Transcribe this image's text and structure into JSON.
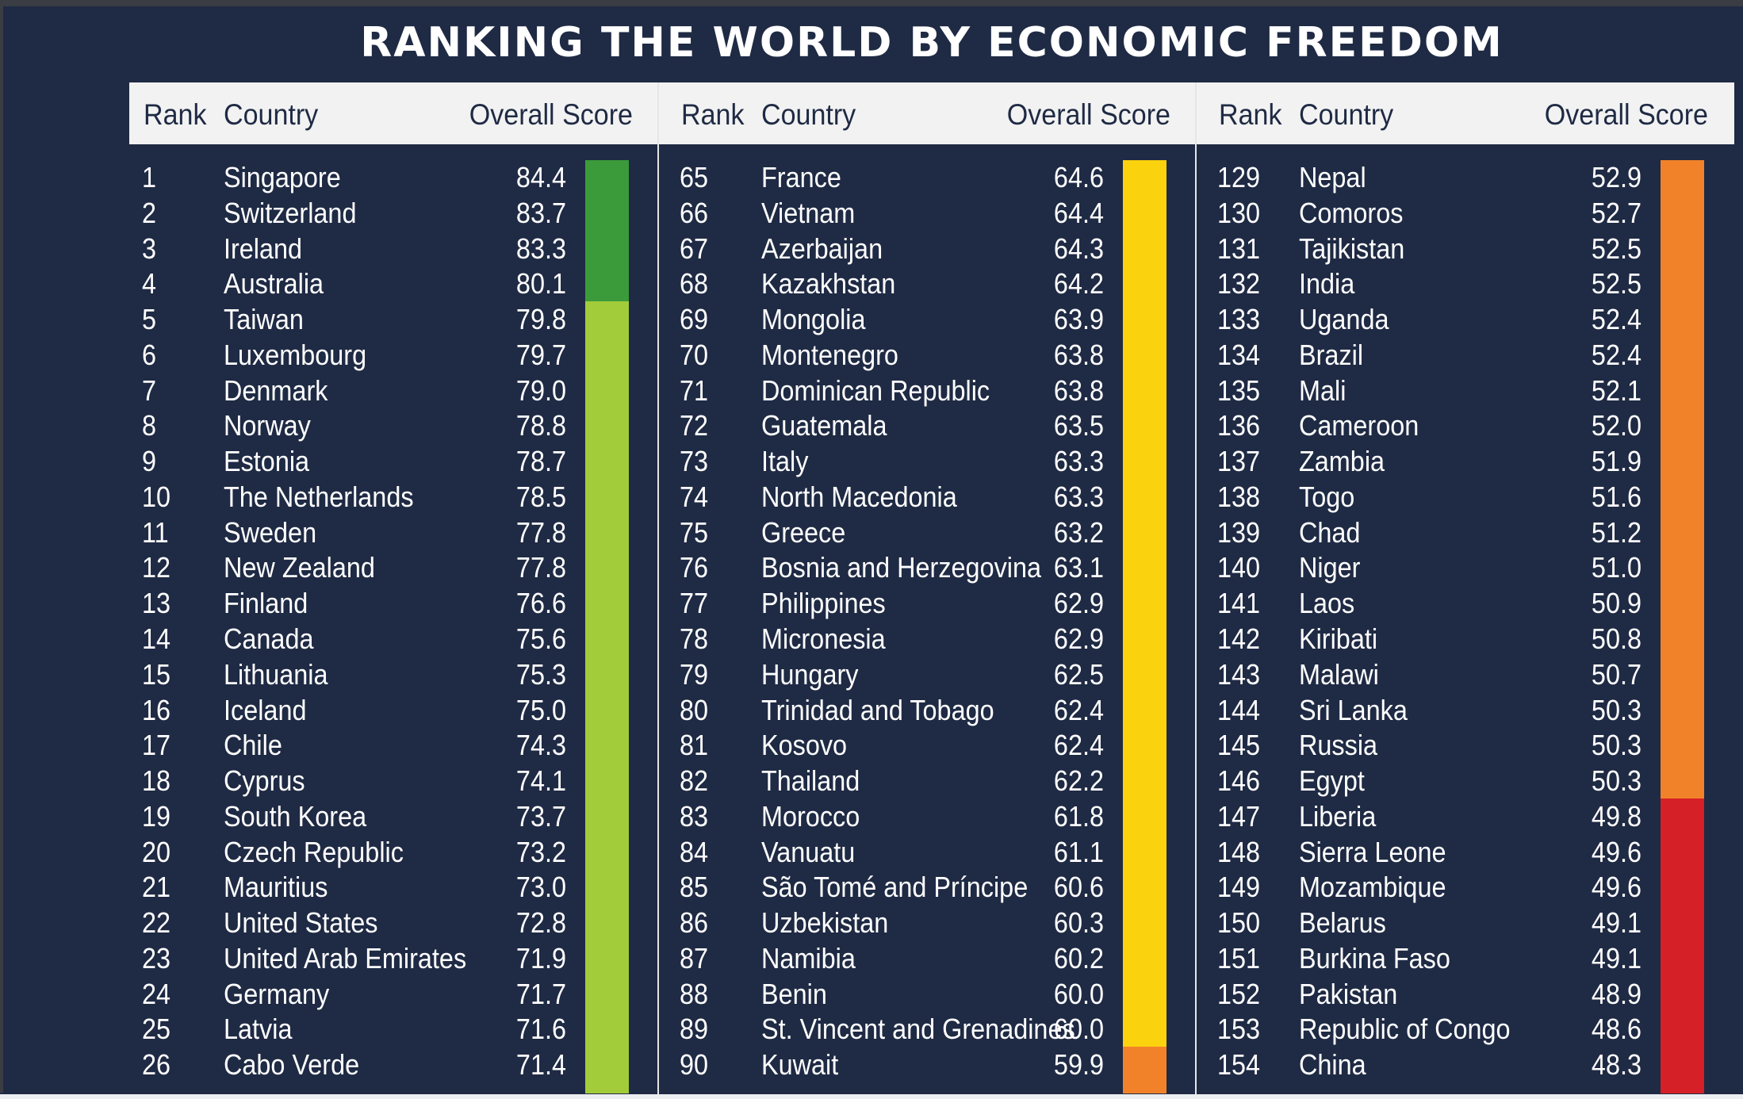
{
  "title": "RANKING THE WORLD BY ECONOMIC FREEDOM",
  "headers": {
    "rank": "Rank",
    "country": "Country",
    "score": "Overall Score"
  },
  "colors": {
    "background": "#1f2a44",
    "free": "#3b9b3b",
    "mostly_free": "#a3cc3a",
    "moderately_free": "#fbd20e",
    "mostly_unfree": "#f2822a",
    "repressed": "#d62027"
  },
  "columns": [
    {
      "rows": [
        {
          "rank": "1",
          "country": "Singapore",
          "score": "84.4",
          "band": "free"
        },
        {
          "rank": "2",
          "country": "Switzerland",
          "score": "83.7",
          "band": "free"
        },
        {
          "rank": "3",
          "country": "Ireland",
          "score": "83.3",
          "band": "free"
        },
        {
          "rank": "4",
          "country": "Australia",
          "score": "80.1",
          "band": "free"
        },
        {
          "rank": "5",
          "country": "Taiwan",
          "score": "79.8",
          "band": "mostly_free"
        },
        {
          "rank": "6",
          "country": "Luxembourg",
          "score": "79.7",
          "band": "mostly_free"
        },
        {
          "rank": "7",
          "country": "Denmark",
          "score": "79.0",
          "band": "mostly_free"
        },
        {
          "rank": "8",
          "country": "Norway",
          "score": "78.8",
          "band": "mostly_free"
        },
        {
          "rank": "9",
          "country": "Estonia",
          "score": "78.7",
          "band": "mostly_free"
        },
        {
          "rank": "10",
          "country": "The Netherlands",
          "score": "78.5",
          "band": "mostly_free"
        },
        {
          "rank": "11",
          "country": "Sweden",
          "score": "77.8",
          "band": "mostly_free"
        },
        {
          "rank": "12",
          "country": "New Zealand",
          "score": "77.8",
          "band": "mostly_free"
        },
        {
          "rank": "13",
          "country": "Finland",
          "score": "76.6",
          "band": "mostly_free"
        },
        {
          "rank": "14",
          "country": "Canada",
          "score": "75.6",
          "band": "mostly_free"
        },
        {
          "rank": "15",
          "country": "Lithuania",
          "score": "75.3",
          "band": "mostly_free"
        },
        {
          "rank": "16",
          "country": "Iceland",
          "score": "75.0",
          "band": "mostly_free"
        },
        {
          "rank": "17",
          "country": "Chile",
          "score": "74.3",
          "band": "mostly_free"
        },
        {
          "rank": "18",
          "country": "Cyprus",
          "score": "74.1",
          "band": "mostly_free"
        },
        {
          "rank": "19",
          "country": "South Korea",
          "score": "73.7",
          "band": "mostly_free"
        },
        {
          "rank": "20",
          "country": "Czech Republic",
          "score": "73.2",
          "band": "mostly_free"
        },
        {
          "rank": "21",
          "country": "Mauritius",
          "score": "73.0",
          "band": "mostly_free"
        },
        {
          "rank": "22",
          "country": "United States",
          "score": "72.8",
          "band": "mostly_free"
        },
        {
          "rank": "23",
          "country": "United Arab Emirates",
          "score": "71.9",
          "band": "mostly_free"
        },
        {
          "rank": "24",
          "country": "Germany",
          "score": "71.7",
          "band": "mostly_free"
        },
        {
          "rank": "25",
          "country": "Latvia",
          "score": "71.6",
          "band": "mostly_free"
        },
        {
          "rank": "26",
          "country": "Cabo Verde",
          "score": "71.4",
          "band": "mostly_free"
        }
      ]
    },
    {
      "rows": [
        {
          "rank": "65",
          "country": "France",
          "score": "64.6",
          "band": "moderately_free"
        },
        {
          "rank": "66",
          "country": "Vietnam",
          "score": "64.4",
          "band": "moderately_free"
        },
        {
          "rank": "67",
          "country": "Azerbaijan",
          "score": "64.3",
          "band": "moderately_free"
        },
        {
          "rank": "68",
          "country": "Kazakhstan",
          "score": "64.2",
          "band": "moderately_free"
        },
        {
          "rank": "69",
          "country": "Mongolia",
          "score": "63.9",
          "band": "moderately_free"
        },
        {
          "rank": "70",
          "country": "Montenegro",
          "score": "63.8",
          "band": "moderately_free"
        },
        {
          "rank": "71",
          "country": "Dominican Republic",
          "score": "63.8",
          "band": "moderately_free"
        },
        {
          "rank": "72",
          "country": "Guatemala",
          "score": "63.5",
          "band": "moderately_free"
        },
        {
          "rank": "73",
          "country": "Italy",
          "score": "63.3",
          "band": "moderately_free"
        },
        {
          "rank": "74",
          "country": "North Macedonia",
          "score": "63.3",
          "band": "moderately_free"
        },
        {
          "rank": "75",
          "country": "Greece",
          "score": "63.2",
          "band": "moderately_free"
        },
        {
          "rank": "76",
          "country": "Bosnia and Herzegovina",
          "score": "63.1",
          "band": "moderately_free"
        },
        {
          "rank": "77",
          "country": "Philippines",
          "score": "62.9",
          "band": "moderately_free"
        },
        {
          "rank": "78",
          "country": "Micronesia",
          "score": "62.9",
          "band": "moderately_free"
        },
        {
          "rank": "79",
          "country": "Hungary",
          "score": "62.5",
          "band": "moderately_free"
        },
        {
          "rank": "80",
          "country": "Trinidad and Tobago",
          "score": "62.4",
          "band": "moderately_free"
        },
        {
          "rank": "81",
          "country": "Kosovo",
          "score": "62.4",
          "band": "moderately_free"
        },
        {
          "rank": "82",
          "country": "Thailand",
          "score": "62.2",
          "band": "moderately_free"
        },
        {
          "rank": "83",
          "country": "Morocco",
          "score": "61.8",
          "band": "moderately_free"
        },
        {
          "rank": "84",
          "country": "Vanuatu",
          "score": "61.1",
          "band": "moderately_free"
        },
        {
          "rank": "85",
          "country": "São Tomé and Príncipe",
          "score": "60.6",
          "band": "moderately_free"
        },
        {
          "rank": "86",
          "country": "Uzbekistan",
          "score": "60.3",
          "band": "moderately_free"
        },
        {
          "rank": "87",
          "country": "Namibia",
          "score": "60.2",
          "band": "moderately_free"
        },
        {
          "rank": "88",
          "country": "Benin",
          "score": "60.0",
          "band": "moderately_free"
        },
        {
          "rank": "89",
          "country": "St. Vincent and Grenadines",
          "score": "60.0",
          "band": "moderately_free"
        },
        {
          "rank": "90",
          "country": "Kuwait",
          "score": "59.9",
          "band": "mostly_unfree"
        }
      ]
    },
    {
      "rows": [
        {
          "rank": "129",
          "country": "Nepal",
          "score": "52.9",
          "band": "mostly_unfree"
        },
        {
          "rank": "130",
          "country": "Comoros",
          "score": "52.7",
          "band": "mostly_unfree"
        },
        {
          "rank": "131",
          "country": "Tajikistan",
          "score": "52.5",
          "band": "mostly_unfree"
        },
        {
          "rank": "132",
          "country": "India",
          "score": "52.5",
          "band": "mostly_unfree"
        },
        {
          "rank": "133",
          "country": "Uganda",
          "score": "52.4",
          "band": "mostly_unfree"
        },
        {
          "rank": "134",
          "country": "Brazil",
          "score": "52.4",
          "band": "mostly_unfree"
        },
        {
          "rank": "135",
          "country": "Mali",
          "score": "52.1",
          "band": "mostly_unfree"
        },
        {
          "rank": "136",
          "country": "Cameroon",
          "score": "52.0",
          "band": "mostly_unfree"
        },
        {
          "rank": "137",
          "country": "Zambia",
          "score": "51.9",
          "band": "mostly_unfree"
        },
        {
          "rank": "138",
          "country": "Togo",
          "score": "51.6",
          "band": "mostly_unfree"
        },
        {
          "rank": "139",
          "country": "Chad",
          "score": "51.2",
          "band": "mostly_unfree"
        },
        {
          "rank": "140",
          "country": "Niger",
          "score": "51.0",
          "band": "mostly_unfree"
        },
        {
          "rank": "141",
          "country": "Laos",
          "score": "50.9",
          "band": "mostly_unfree"
        },
        {
          "rank": "142",
          "country": "Kiribati",
          "score": "50.8",
          "band": "mostly_unfree"
        },
        {
          "rank": "143",
          "country": "Malawi",
          "score": "50.7",
          "band": "mostly_unfree"
        },
        {
          "rank": "144",
          "country": "Sri Lanka",
          "score": "50.3",
          "band": "mostly_unfree"
        },
        {
          "rank": "145",
          "country": "Russia",
          "score": "50.3",
          "band": "mostly_unfree"
        },
        {
          "rank": "146",
          "country": "Egypt",
          "score": "50.3",
          "band": "mostly_unfree"
        },
        {
          "rank": "147",
          "country": "Liberia",
          "score": "49.8",
          "band": "repressed"
        },
        {
          "rank": "148",
          "country": "Sierra Leone",
          "score": "49.6",
          "band": "repressed"
        },
        {
          "rank": "149",
          "country": "Mozambique",
          "score": "49.6",
          "band": "repressed"
        },
        {
          "rank": "150",
          "country": "Belarus",
          "score": "49.1",
          "band": "repressed"
        },
        {
          "rank": "151",
          "country": "Burkina Faso",
          "score": "49.1",
          "band": "repressed"
        },
        {
          "rank": "152",
          "country": "Pakistan",
          "score": "48.9",
          "band": "repressed"
        },
        {
          "rank": "153",
          "country": "Republic of Congo",
          "score": "48.6",
          "band": "repressed"
        },
        {
          "rank": "154",
          "country": "China",
          "score": "48.3",
          "band": "repressed"
        }
      ]
    }
  ]
}
